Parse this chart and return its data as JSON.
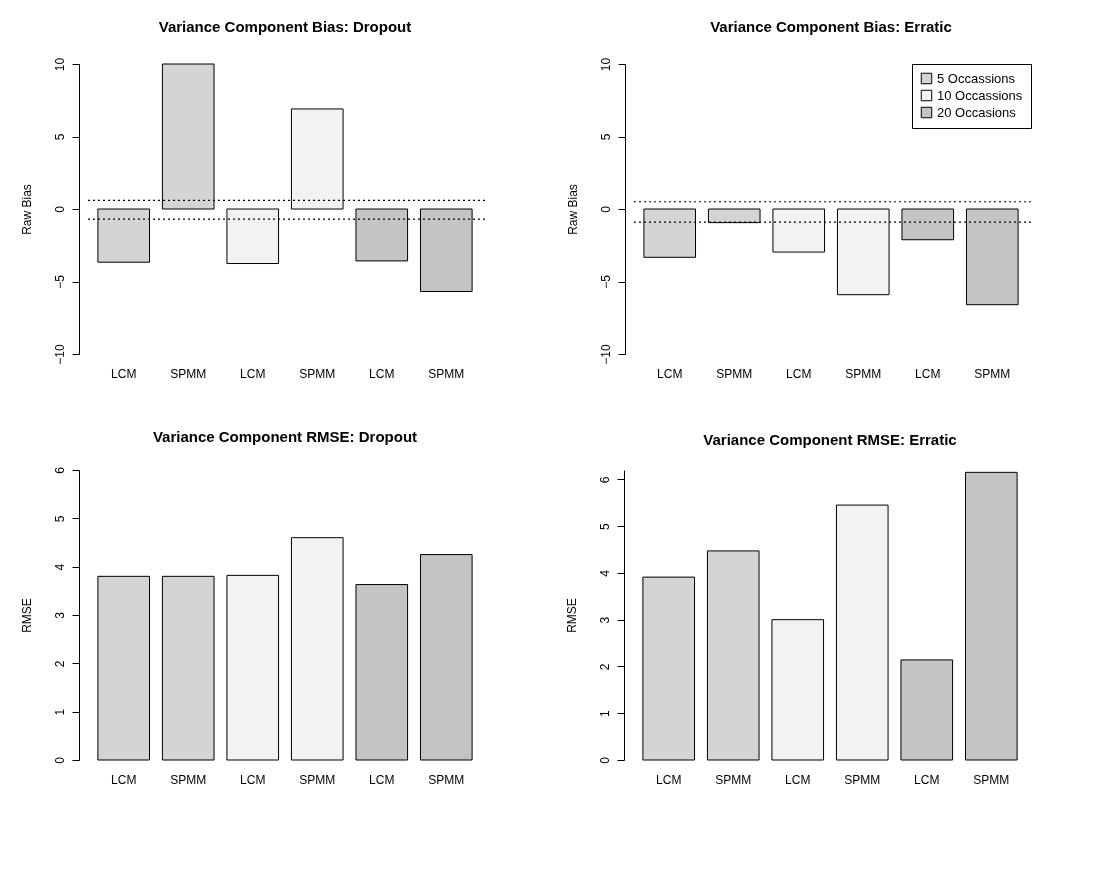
{
  "chart_data": [
    {
      "type": "bar",
      "title": "Variance Component Bias: Dropout",
      "ylabel": "Raw Bias",
      "categories": [
        "LCM",
        "SPMM",
        "LCM",
        "SPMM",
        "LCM",
        "SPMM"
      ],
      "values": [
        -3.67,
        10,
        -3.76,
        6.9,
        -3.58,
        -5.69
      ],
      "colors": [
        "#d4d4d4",
        "#d4d4d4",
        "#f2f2f2",
        "#f2f2f2",
        "#c4c4c4",
        "#c4c4c4"
      ],
      "ylim": [
        -10,
        10
      ],
      "yticks": [
        -10,
        -5,
        0,
        5,
        10
      ],
      "ref_lines": [
        {
          "axis": "y",
          "value": 0.6,
          "line_style": "dotted"
        },
        {
          "axis": "y",
          "value": -0.7,
          "line_style": "dotted"
        }
      ],
      "grid": false
    },
    {
      "type": "bar",
      "title": "Variance Component Bias: Erratic",
      "ylabel": "Raw Bias",
      "categories": [
        "LCM",
        "SPMM",
        "LCM",
        "SPMM",
        "LCM",
        "SPMM"
      ],
      "series": [
        {
          "name": "5 Occassions",
          "color": "#d4d4d4",
          "values": [
            -3.33,
            -0.94,
            null,
            null,
            null,
            null
          ]
        },
        {
          "name": "10 Occassions",
          "color": "#f2f2f2",
          "values": [
            null,
            null,
            -2.97,
            -5.91,
            null,
            null
          ]
        },
        {
          "name": "20 Occasions",
          "color": "#c4c4c4",
          "values": [
            null,
            null,
            null,
            null,
            -2.12,
            -6.6
          ]
        }
      ],
      "ylim": [
        -10,
        10
      ],
      "yticks": [
        -10,
        -5,
        0,
        5,
        10
      ],
      "ref_lines": [
        {
          "axis": "y",
          "value": 0.5,
          "line_style": "dotted"
        },
        {
          "axis": "y",
          "value": -0.9,
          "line_style": "dotted"
        }
      ],
      "grid": false,
      "legend": "top right"
    },
    {
      "type": "bar",
      "title": "Variance Component RMSE: Dropout",
      "ylabel": "RMSE",
      "categories": [
        "LCM",
        "SPMM",
        "LCM",
        "SPMM",
        "LCM",
        "SPMM"
      ],
      "values": [
        3.8,
        3.8,
        3.82,
        4.6,
        3.63,
        4.25
      ],
      "colors": [
        "#d4d4d4",
        "#d4d4d4",
        "#f2f2f2",
        "#f2f2f2",
        "#c4c4c4",
        "#c4c4c4"
      ],
      "ylim": [
        0,
        6
      ],
      "yticks": [
        0,
        1,
        2,
        3,
        4,
        5,
        6
      ],
      "grid": false
    },
    {
      "type": "bar",
      "title": "Variance Component RMSE: Erratic",
      "ylabel": "RMSE",
      "categories": [
        "LCM",
        "SPMM",
        "LCM",
        "SPMM",
        "LCM",
        "SPMM"
      ],
      "values": [
        3.91,
        4.47,
        3.0,
        5.45,
        2.14,
        6.15
      ],
      "colors": [
        "#d4d4d4",
        "#d4d4d4",
        "#f2f2f2",
        "#f2f2f2",
        "#c4c4c4",
        "#c4c4c4"
      ],
      "ylim": [
        0,
        6.2
      ],
      "yticks": [
        0,
        1,
        2,
        3,
        4,
        5,
        6
      ],
      "grid": false
    }
  ]
}
